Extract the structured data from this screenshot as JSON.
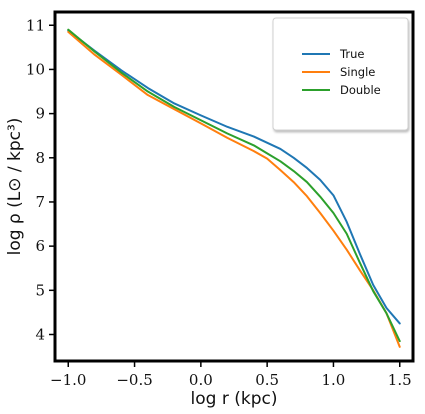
{
  "chart_data": {
    "type": "line",
    "xlabel": "log r (kpc)",
    "ylabel": "log ρ (L⊙ / kpc³)",
    "xlim": [
      -1.1,
      1.6
    ],
    "ylim": [
      3.4,
      11.3
    ],
    "xticks": [
      -1.0,
      -0.5,
      0.0,
      0.5,
      1.0,
      1.5
    ],
    "xtick_labels": [
      "−1.0",
      "−0.5",
      "0.0",
      "0.5",
      "1.0",
      "1.5"
    ],
    "yticks": [
      4,
      5,
      6,
      7,
      8,
      9,
      10,
      11
    ],
    "ytick_labels": [
      "4",
      "5",
      "6",
      "7",
      "8",
      "9",
      "10",
      "11"
    ],
    "grid": false,
    "legend_position": "top-right",
    "series": [
      {
        "name": "True",
        "color": "#1f77b4",
        "points": [
          [
            -1.0,
            10.88
          ],
          [
            -0.8,
            10.42
          ],
          [
            -0.6,
            9.98
          ],
          [
            -0.4,
            9.58
          ],
          [
            -0.2,
            9.23
          ],
          [
            0.0,
            8.96
          ],
          [
            0.2,
            8.7
          ],
          [
            0.4,
            8.48
          ],
          [
            0.6,
            8.2
          ],
          [
            0.7,
            8.0
          ],
          [
            0.8,
            7.77
          ],
          [
            0.9,
            7.5
          ],
          [
            1.0,
            7.15
          ],
          [
            1.1,
            6.55
          ],
          [
            1.2,
            5.82
          ],
          [
            1.3,
            5.12
          ],
          [
            1.4,
            4.6
          ],
          [
            1.5,
            4.25
          ]
        ]
      },
      {
        "name": "Single",
        "color": "#ff7f0e",
        "points": [
          [
            -1.0,
            10.85
          ],
          [
            -0.8,
            10.33
          ],
          [
            -0.6,
            9.88
          ],
          [
            -0.4,
            9.42
          ],
          [
            -0.2,
            9.1
          ],
          [
            0.0,
            8.78
          ],
          [
            0.2,
            8.45
          ],
          [
            0.4,
            8.15
          ],
          [
            0.5,
            7.98
          ],
          [
            0.6,
            7.72
          ],
          [
            0.7,
            7.45
          ],
          [
            0.8,
            7.13
          ],
          [
            0.9,
            6.75
          ],
          [
            1.0,
            6.35
          ],
          [
            1.1,
            5.92
          ],
          [
            1.2,
            5.45
          ],
          [
            1.3,
            5.0
          ],
          [
            1.4,
            4.48
          ],
          [
            1.5,
            3.72
          ]
        ]
      },
      {
        "name": "Double",
        "color": "#2ca02c",
        "points": [
          [
            -1.0,
            10.9
          ],
          [
            -0.8,
            10.4
          ],
          [
            -0.6,
            9.93
          ],
          [
            -0.4,
            9.5
          ],
          [
            -0.2,
            9.15
          ],
          [
            0.0,
            8.85
          ],
          [
            0.2,
            8.55
          ],
          [
            0.4,
            8.28
          ],
          [
            0.5,
            8.1
          ],
          [
            0.6,
            7.92
          ],
          [
            0.7,
            7.7
          ],
          [
            0.8,
            7.45
          ],
          [
            0.9,
            7.12
          ],
          [
            1.0,
            6.75
          ],
          [
            1.1,
            6.28
          ],
          [
            1.2,
            5.62
          ],
          [
            1.3,
            4.98
          ],
          [
            1.4,
            4.48
          ],
          [
            1.5,
            3.85
          ]
        ]
      }
    ]
  }
}
